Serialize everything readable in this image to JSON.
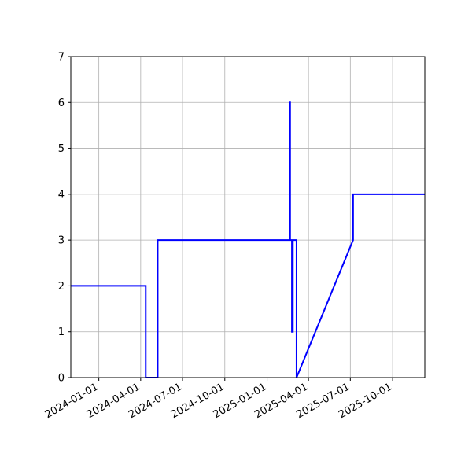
{
  "chart_data": {
    "type": "line",
    "title": "",
    "xlabel": "",
    "ylabel": "",
    "grid": true,
    "line_color": "#0000ff",
    "grid_color": "#b0b0b0",
    "x_domain": [
      "2023-11-01",
      "2025-12-10"
    ],
    "ylim": [
      0,
      7
    ],
    "x_ticks": [
      "2024-01-01",
      "2024-04-01",
      "2024-07-01",
      "2024-10-01",
      "2025-01-01",
      "2025-04-01",
      "2025-07-01",
      "2025-10-01"
    ],
    "y_ticks": [
      "0",
      "1",
      "2",
      "3",
      "4",
      "5",
      "6",
      "7"
    ],
    "series": [
      {
        "x": [
          "2023-11-01",
          "2024-04-12",
          "2024-04-12",
          "2024-04-14",
          "2024-04-14",
          "2024-05-08",
          "2024-05-08",
          "2025-02-19",
          "2025-02-19",
          "2025-02-20",
          "2025-02-20",
          "2025-02-24",
          "2025-02-24",
          "2025-02-26",
          "2025-02-26",
          "2025-03-06",
          "2025-03-06",
          "2025-07-07",
          "2025-07-07",
          "2025-12-10"
        ],
        "y": [
          2,
          2,
          0,
          0,
          0,
          0,
          3,
          3,
          6,
          6,
          3,
          3,
          1,
          1,
          3,
          3,
          0,
          3,
          4,
          4
        ]
      }
    ]
  }
}
